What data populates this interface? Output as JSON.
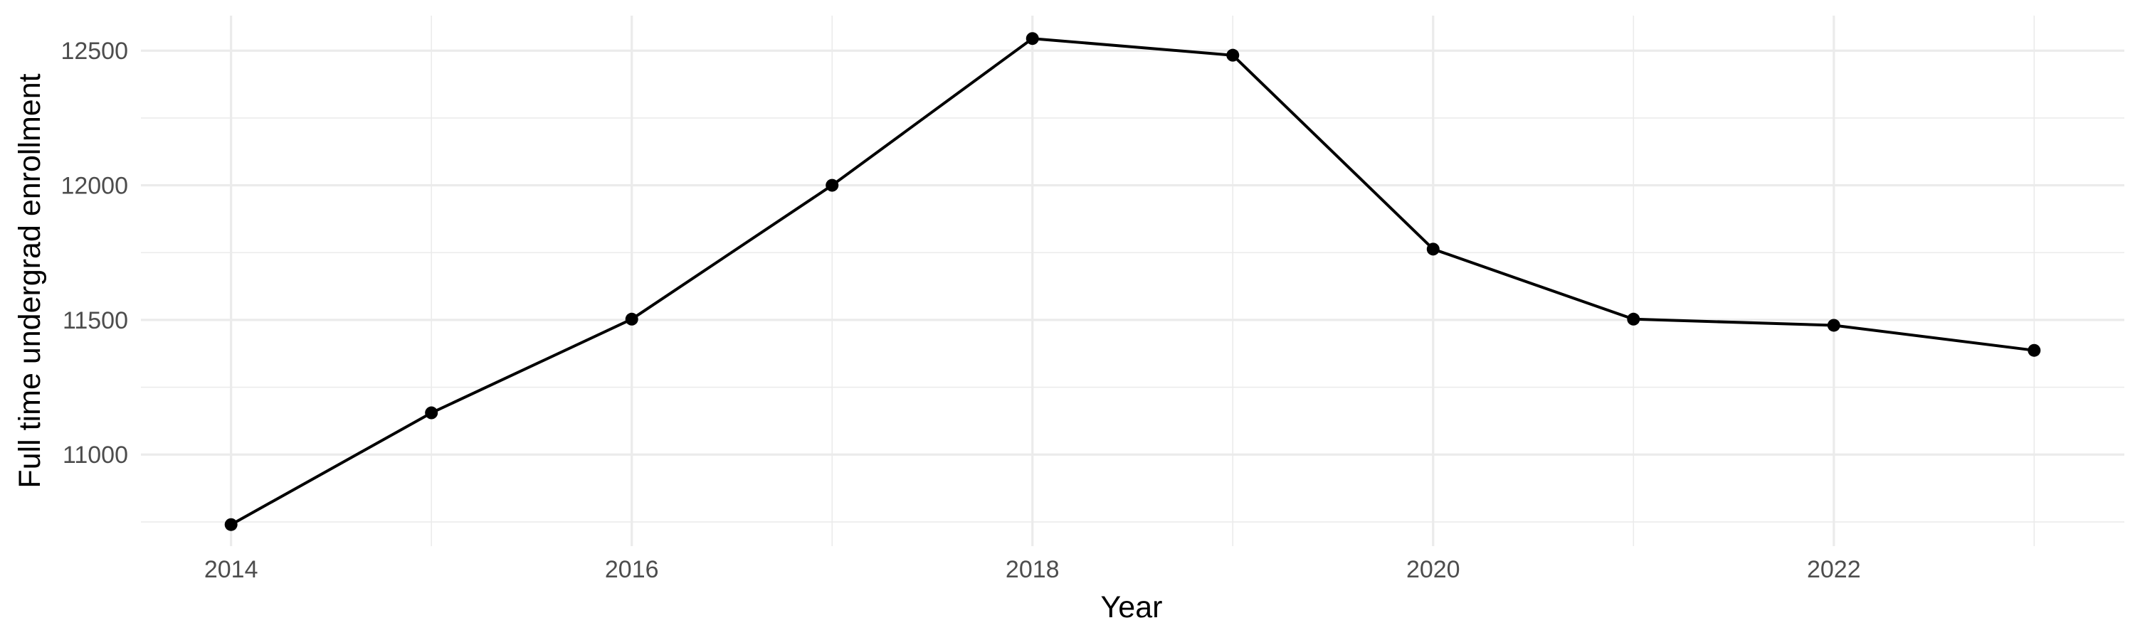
{
  "chart_data": {
    "type": "line",
    "title": "",
    "xlabel": "Year",
    "ylabel": "Full time undergrad enrollment",
    "x": [
      2014,
      2015,
      2016,
      2017,
      2018,
      2019,
      2020,
      2021,
      2022,
      2023
    ],
    "series": [
      {
        "values": [
          10740,
          11155,
          11503,
          12000,
          12545,
          12483,
          11763,
          11503,
          11480,
          11387
        ]
      }
    ],
    "xlim": [
      2013.55,
      2023.45
    ],
    "ylim": [
      10660,
      12630
    ],
    "x_ticks": [
      "2014",
      "2016",
      "2018",
      "2020",
      "2022"
    ],
    "y_ticks": [
      "11000",
      "11500",
      "12000",
      "12500"
    ],
    "grid": true,
    "legend": "none",
    "line_color": "#000000",
    "grid_color": "#ebebeb"
  }
}
